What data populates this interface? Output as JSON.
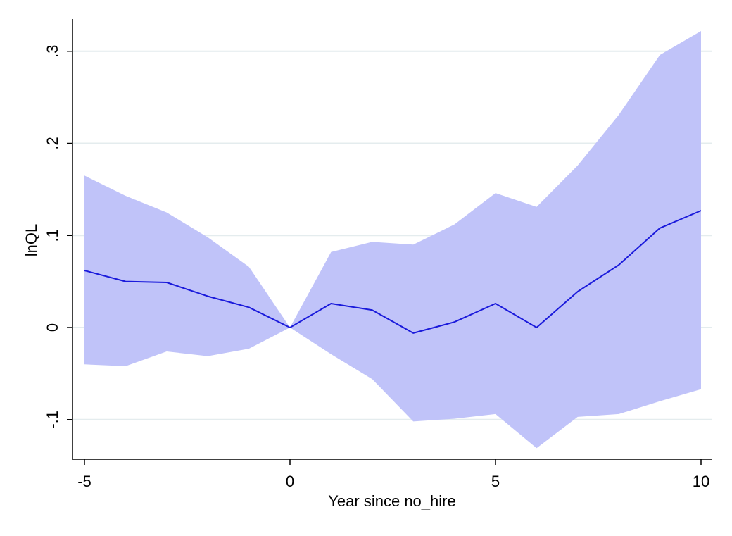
{
  "chart_data": {
    "type": "line",
    "xlabel": "Year since no_hire",
    "ylabel": "lnQL",
    "xlim": [
      -5,
      10
    ],
    "ylim": [
      -0.143,
      0.335
    ],
    "x_ticks": [
      -5,
      0,
      5,
      10
    ],
    "x_tick_labels": [
      "-5",
      "0",
      "5",
      "10"
    ],
    "y_ticks": [
      -0.1,
      0,
      0.1,
      0.2,
      0.3
    ],
    "y_tick_labels": [
      "-.1",
      "0",
      ".1",
      ".2",
      ".3"
    ],
    "grid": true,
    "x": [
      -5,
      -4,
      -3,
      -2,
      -1,
      0,
      1,
      2,
      3,
      4,
      5,
      6,
      7,
      8,
      9,
      10
    ],
    "series": [
      {
        "values": [
          0.062,
          0.05,
          0.049,
          0.034,
          0.022,
          0.0,
          0.026,
          0.019,
          -0.006,
          0.006,
          0.026,
          0.0,
          0.039,
          0.068,
          0.108,
          0.127
        ],
        "color": "#1a1adb"
      }
    ],
    "band": {
      "upper": [
        0.165,
        0.143,
        0.125,
        0.098,
        0.066,
        0.0,
        0.082,
        0.093,
        0.09,
        0.112,
        0.146,
        0.131,
        0.176,
        0.231,
        0.296,
        0.322
      ],
      "lower": [
        -0.04,
        -0.042,
        -0.026,
        -0.031,
        -0.023,
        0.0,
        -0.029,
        -0.056,
        -0.102,
        -0.099,
        -0.094,
        -0.131,
        -0.097,
        -0.094,
        -0.08,
        -0.067
      ],
      "color": "#c0c3f9"
    }
  }
}
